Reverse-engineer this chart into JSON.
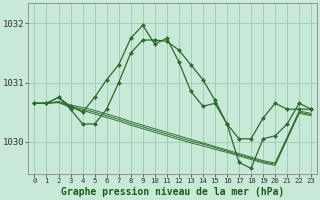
{
  "title": "Graphe pression niveau de la mer (hPa)",
  "background_color": "#c8e8d8",
  "grid_color": "#a0c8b0",
  "line_color": "#2d6a2d",
  "marker_color": "#2d6a2d",
  "ylim": [
    1029.45,
    1032.35
  ],
  "yticks": [
    1030,
    1031,
    1032
  ],
  "ylabel_fontsize": 6.5,
  "xlabel_fontsize": 7.0,
  "xtick_fontsize": 5.2,
  "x_labels": [
    "0",
    "1",
    "2",
    "3",
    "4",
    "5",
    "6",
    "7",
    "8",
    "9",
    "10",
    "11",
    "12",
    "13",
    "14",
    "15",
    "16",
    "17",
    "18",
    "19",
    "20",
    "21",
    "22",
    "23"
  ],
  "series_main1": [
    1030.65,
    1030.65,
    1030.75,
    1030.6,
    1030.5,
    1030.75,
    1031.05,
    1031.3,
    1031.75,
    1031.97,
    1031.65,
    1031.75,
    1031.35,
    1030.85,
    1030.6,
    1030.65,
    1030.3,
    1029.65,
    1029.55,
    1030.05,
    1030.1,
    1030.3,
    1030.65,
    1030.55
  ],
  "series_main2": [
    1030.65,
    1030.65,
    1030.75,
    1030.55,
    1030.3,
    1030.3,
    1030.55,
    1031.0,
    1031.5,
    1031.72,
    1031.72,
    1031.7,
    1031.55,
    1031.3,
    1031.05,
    1030.7,
    1030.3,
    1030.05,
    1030.05,
    1030.4,
    1030.65,
    1030.55,
    1030.55,
    1030.55
  ],
  "trend_lines": [
    [
      1030.65,
      1030.65,
      1030.68,
      1030.62,
      1030.58,
      1030.53,
      1030.47,
      1030.41,
      1030.34,
      1030.28,
      1030.22,
      1030.16,
      1030.1,
      1030.04,
      1029.98,
      1029.92,
      1029.86,
      1029.8,
      1029.74,
      1029.68,
      1029.64,
      1030.08,
      1030.52,
      1030.48
    ],
    [
      1030.65,
      1030.65,
      1030.67,
      1030.6,
      1030.55,
      1030.5,
      1030.44,
      1030.38,
      1030.31,
      1030.25,
      1030.19,
      1030.13,
      1030.07,
      1030.01,
      1029.96,
      1029.9,
      1029.84,
      1029.78,
      1029.72,
      1029.66,
      1029.62,
      1030.06,
      1030.5,
      1030.46
    ],
    [
      1030.65,
      1030.65,
      1030.66,
      1030.58,
      1030.53,
      1030.47,
      1030.41,
      1030.35,
      1030.28,
      1030.22,
      1030.16,
      1030.1,
      1030.04,
      1029.98,
      1029.93,
      1029.87,
      1029.82,
      1029.76,
      1029.7,
      1029.64,
      1029.6,
      1030.04,
      1030.48,
      1030.44
    ]
  ]
}
